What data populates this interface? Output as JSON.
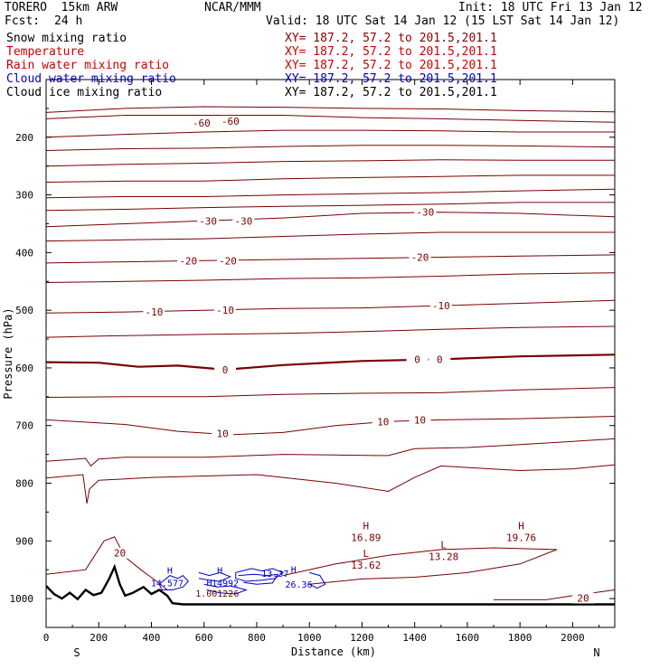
{
  "header": {
    "model": "TORERO  15km ARW",
    "org": "NCAR/MMM",
    "init": "Init: 18 UTC Fri 13 Jan 12",
    "fcst_label": "Fcst:",
    "fcst_value": "24 h",
    "valid": "Valid: 18 UTC Sat 14 Jan 12 (15 LST Sat 14 Jan 12)"
  },
  "legend": [
    {
      "name": "Snow mixing ratio",
      "xy": "XY= 187.2, 57.2 to 201.5,201.1",
      "color": "#000000"
    },
    {
      "name": "Temperature",
      "xy": "XY= 187.2, 57.2 to 201.5,201.1",
      "color": "#cc0000"
    },
    {
      "name": "Rain water mixing ratio",
      "xy": "XY= 187.2, 57.2 to 201.5,201.1",
      "color": "#cc0000"
    },
    {
      "name": "Cloud water mixing ratio",
      "xy": "XY= 187.2, 57.2 to 201.5,201.1",
      "color": "#0000cc"
    },
    {
      "name": "Cloud ice mixing ratio",
      "xy": "XY= 187.2, 57.2 to 201.5,201.1",
      "color": "#000000"
    }
  ],
  "colors": {
    "temperature": "#7a0000",
    "cloud_water": "#0000cc",
    "terrain": "#000000"
  },
  "chart_data": {
    "type": "line",
    "title": "",
    "xlabel": "Distance (km)",
    "ylabel": "Pressure (hPa)",
    "xlim": [
      0,
      2160
    ],
    "ylim": [
      1050,
      100
    ],
    "x_ticks": [
      0,
      200,
      400,
      600,
      800,
      1000,
      1200,
      1400,
      1600,
      1800,
      2000
    ],
    "x_tick_labels": [
      "0",
      "200",
      "400",
      "600",
      "800",
      "1000",
      "1200",
      "1400",
      "1600",
      "1800",
      "2000"
    ],
    "y_ticks": [
      200,
      300,
      400,
      500,
      600,
      700,
      800,
      900,
      1000
    ],
    "y_tick_labels": [
      "200",
      "300",
      "400",
      "500",
      "600",
      "700",
      "800",
      "900",
      "1000"
    ],
    "endpoint_labels": {
      "left": "S",
      "right": "N"
    },
    "isotherm_labels": [
      {
        "text": "-60",
        "x": 590,
        "p": 175
      },
      {
        "text": "-60",
        "x": 700,
        "p": 172
      },
      {
        "text": "-30",
        "x": 615,
        "p": 345
      },
      {
        "text": "-30",
        "x": 750,
        "p": 345
      },
      {
        "text": "-30",
        "x": 1440,
        "p": 330
      },
      {
        "text": "-20",
        "x": 540,
        "p": 414
      },
      {
        "text": "-20",
        "x": 690,
        "p": 414
      },
      {
        "text": "-20",
        "x": 1420,
        "p": 408
      },
      {
        "text": "-10",
        "x": 410,
        "p": 503
      },
      {
        "text": "-10",
        "x": 680,
        "p": 500
      },
      {
        "text": "-10",
        "x": 1500,
        "p": 492
      },
      {
        "text": "0",
        "x": 680,
        "p": 603
      },
      {
        "text": "0",
        "x": 1410,
        "p": 585
      },
      {
        "text": "0",
        "x": 1495,
        "p": 585
      },
      {
        "text": "10",
        "x": 1280,
        "p": 693
      },
      {
        "text": "10",
        "x": 1420,
        "p": 690
      },
      {
        "text": "10",
        "x": 670,
        "p": 714
      },
      {
        "text": "20",
        "x": 280,
        "p": 921
      },
      {
        "text": "20",
        "x": 2040,
        "p": 999
      }
    ],
    "extrema": [
      {
        "kind": "H",
        "value": "16.89",
        "x": 1215,
        "p": 880
      },
      {
        "kind": "H",
        "value": "19.76",
        "x": 1805,
        "p": 880
      },
      {
        "kind": "L",
        "value": "13.62",
        "x": 1215,
        "p": 928
      },
      {
        "kind": "L",
        "value": "13.28",
        "x": 1510,
        "p": 913
      }
    ],
    "cloud_water_labels": [
      {
        "text": "H",
        "x": 470,
        "p": 957
      },
      {
        "text": "14.577",
        "x": 460,
        "p": 979
      },
      {
        "text": "H",
        "x": 660,
        "p": 957
      },
      {
        "text": "14992",
        "x": 680,
        "p": 979
      },
      {
        "text": "H",
        "x": 940,
        "p": 955
      },
      {
        "text": "13.37",
        "x": 870,
        "p": 962
      },
      {
        "text": "26.36",
        "x": 960,
        "p": 981
      },
      {
        "text": "H",
        "x": 620,
        "p": 978
      },
      {
        "text": "1.001226",
        "x": 650,
        "p": 997
      }
    ],
    "isotherm_lines": [
      {
        "temp": -60,
        "points": [
          [
            0,
            157
          ],
          [
            300,
            150
          ],
          [
            600,
            147
          ],
          [
            900,
            148
          ],
          [
            1200,
            150
          ],
          [
            1500,
            151
          ],
          [
            1800,
            154
          ],
          [
            2160,
            156
          ]
        ]
      },
      {
        "temp": -65,
        "points": [
          [
            0,
            168
          ],
          [
            300,
            162
          ],
          [
            600,
            162
          ],
          [
            900,
            162
          ],
          [
            1200,
            166
          ],
          [
            1500,
            168
          ],
          [
            1800,
            171
          ],
          [
            2160,
            174
          ]
        ]
      },
      {
        "temp": -60,
        "points": [
          [
            0,
            200
          ],
          [
            300,
            195
          ],
          [
            600,
            191
          ],
          [
            900,
            188
          ],
          [
            1200,
            188
          ],
          [
            1500,
            189
          ],
          [
            1800,
            191
          ],
          [
            2160,
            191
          ]
        ]
      },
      {
        "temp": -55,
        "points": [
          [
            0,
            223
          ],
          [
            300,
            220
          ],
          [
            600,
            219
          ],
          [
            900,
            216
          ],
          [
            1200,
            214
          ],
          [
            1500,
            214
          ],
          [
            1800,
            215
          ],
          [
            2160,
            217
          ]
        ]
      },
      {
        "temp": -50,
        "points": [
          [
            0,
            250
          ],
          [
            300,
            247
          ],
          [
            600,
            245
          ],
          [
            900,
            242
          ],
          [
            1200,
            241
          ],
          [
            1500,
            239
          ],
          [
            1800,
            240
          ],
          [
            2160,
            240
          ]
        ]
      },
      {
        "temp": -45,
        "points": [
          [
            0,
            278
          ],
          [
            300,
            276
          ],
          [
            600,
            276
          ],
          [
            900,
            272
          ],
          [
            1200,
            270
          ],
          [
            1500,
            268
          ],
          [
            1800,
            266
          ],
          [
            2160,
            266
          ]
        ]
      },
      {
        "temp": -40,
        "points": [
          [
            0,
            305
          ],
          [
            300,
            303
          ],
          [
            600,
            303
          ],
          [
            900,
            300
          ],
          [
            1200,
            298
          ],
          [
            1500,
            296
          ],
          [
            1800,
            293
          ],
          [
            2160,
            290
          ]
        ]
      },
      {
        "temp": -35,
        "points": [
          [
            0,
            327
          ],
          [
            300,
            325
          ],
          [
            600,
            322
          ],
          [
            900,
            320
          ],
          [
            1200,
            318
          ],
          [
            1500,
            316
          ],
          [
            1800,
            313
          ],
          [
            2160,
            313
          ]
        ]
      },
      {
        "temp": -30,
        "points": [
          [
            0,
            355
          ],
          [
            300,
            350
          ],
          [
            600,
            345
          ],
          [
            900,
            340
          ],
          [
            1200,
            332
          ],
          [
            1500,
            330
          ],
          [
            1800,
            332
          ],
          [
            2160,
            338
          ]
        ]
      },
      {
        "temp": -25,
        "points": [
          [
            0,
            380
          ],
          [
            300,
            378
          ],
          [
            600,
            376
          ],
          [
            900,
            372
          ],
          [
            1200,
            368
          ],
          [
            1500,
            365
          ],
          [
            1800,
            365
          ],
          [
            2160,
            365
          ]
        ]
      },
      {
        "temp": -20,
        "points": [
          [
            0,
            418
          ],
          [
            300,
            416
          ],
          [
            600,
            414
          ],
          [
            900,
            412
          ],
          [
            1200,
            410
          ],
          [
            1500,
            408
          ],
          [
            1800,
            406
          ],
          [
            2160,
            404
          ]
        ]
      },
      {
        "temp": -15,
        "points": [
          [
            0,
            452
          ],
          [
            300,
            450
          ],
          [
            600,
            448
          ],
          [
            900,
            445
          ],
          [
            1200,
            444
          ],
          [
            1500,
            441
          ],
          [
            1800,
            437
          ],
          [
            2160,
            435
          ]
        ]
      },
      {
        "temp": -10,
        "points": [
          [
            0,
            505
          ],
          [
            300,
            503
          ],
          [
            600,
            500
          ],
          [
            900,
            497
          ],
          [
            1200,
            496
          ],
          [
            1500,
            492
          ],
          [
            1800,
            488
          ],
          [
            2160,
            483
          ]
        ]
      },
      {
        "temp": -5,
        "points": [
          [
            0,
            547
          ],
          [
            300,
            544
          ],
          [
            600,
            542
          ],
          [
            900,
            540
          ],
          [
            1200,
            537
          ],
          [
            1500,
            533
          ],
          [
            1800,
            530
          ],
          [
            2160,
            528
          ]
        ]
      },
      {
        "temp": 0,
        "points": [
          [
            0,
            590
          ],
          [
            200,
            591
          ],
          [
            350,
            598
          ],
          [
            500,
            596
          ],
          [
            680,
            603
          ],
          [
            900,
            595
          ],
          [
            1200,
            588
          ],
          [
            1500,
            585
          ],
          [
            1800,
            580
          ],
          [
            2160,
            577
          ]
        ]
      },
      {
        "temp": 5,
        "points": [
          [
            0,
            651
          ],
          [
            300,
            650
          ],
          [
            600,
            650
          ],
          [
            900,
            646
          ],
          [
            1200,
            644
          ],
          [
            1500,
            643
          ],
          [
            1800,
            638
          ],
          [
            2160,
            634
          ]
        ]
      },
      {
        "temp": 10,
        "points": [
          [
            0,
            690
          ],
          [
            300,
            698
          ],
          [
            500,
            710
          ],
          [
            700,
            716
          ],
          [
            900,
            712
          ],
          [
            1100,
            700
          ],
          [
            1300,
            693
          ],
          [
            1500,
            690
          ],
          [
            1800,
            688
          ],
          [
            2160,
            684
          ]
        ]
      },
      {
        "temp": 15,
        "points": [
          [
            0,
            762
          ],
          [
            150,
            757
          ],
          [
            170,
            770
          ],
          [
            200,
            758
          ],
          [
            300,
            755
          ],
          [
            600,
            755
          ],
          [
            900,
            750
          ],
          [
            1100,
            751
          ],
          [
            1250,
            752
          ],
          [
            1300,
            752
          ],
          [
            1400,
            740
          ],
          [
            1600,
            738
          ],
          [
            1800,
            733
          ],
          [
            2160,
            723
          ]
        ]
      },
      {
        "temp": 20,
        "points": [
          [
            0,
            791
          ],
          [
            140,
            785
          ],
          [
            155,
            835
          ],
          [
            165,
            810
          ],
          [
            200,
            795
          ],
          [
            400,
            790
          ],
          [
            800,
            785
          ],
          [
            1100,
            800
          ],
          [
            1300,
            814
          ],
          [
            1400,
            790
          ],
          [
            1500,
            770
          ],
          [
            1800,
            778
          ],
          [
            2000,
            775
          ],
          [
            2160,
            768
          ]
        ]
      }
    ]
  }
}
